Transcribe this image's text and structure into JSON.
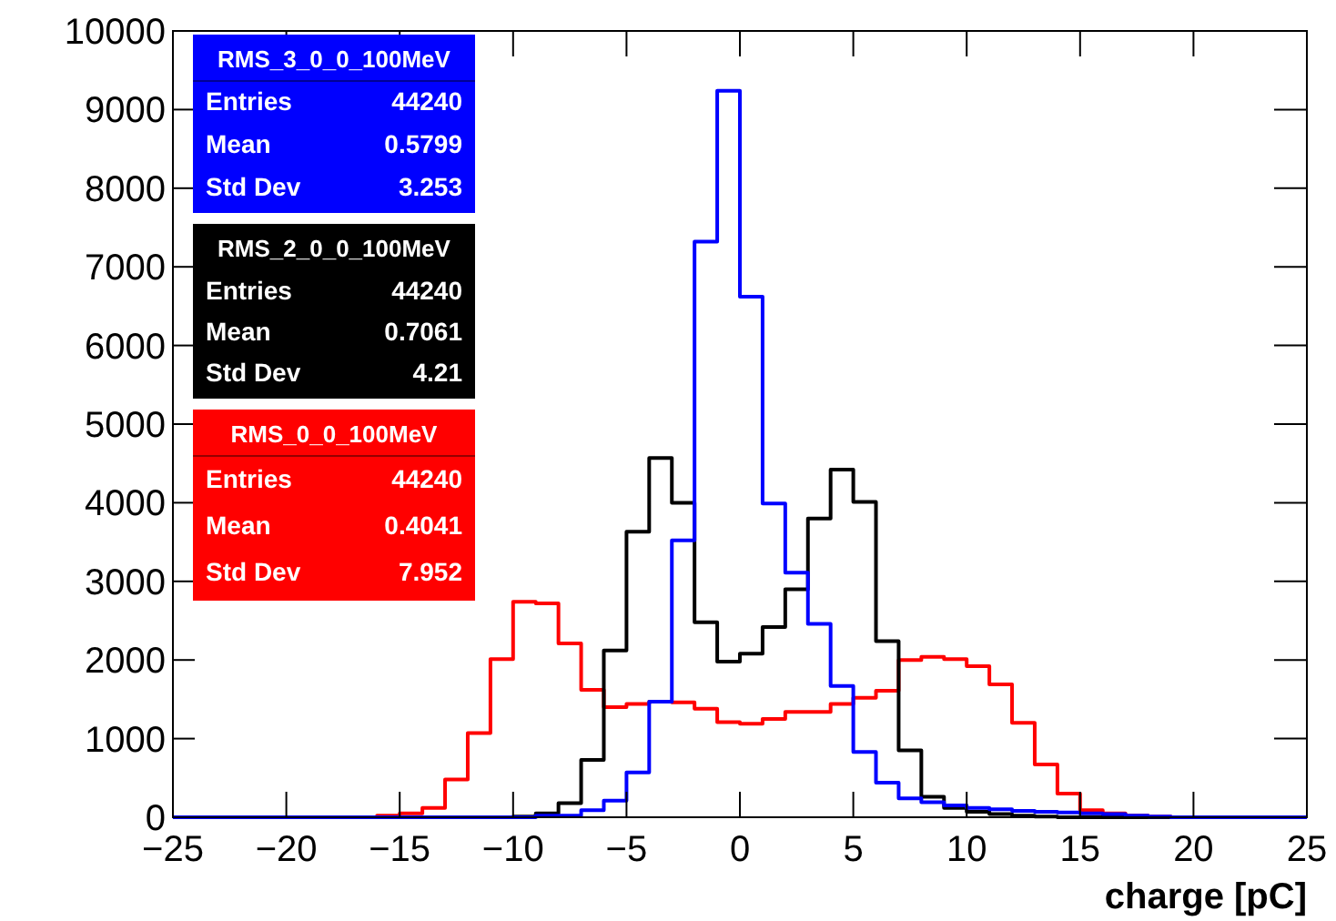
{
  "chart_data": {
    "type": "histogram",
    "xlabel": "charge [pC]",
    "bins": [
      -25,
      -24,
      -23,
      -22,
      -21,
      -20,
      -19,
      -18,
      -17,
      -16,
      -15,
      -14,
      -13,
      -12,
      -11,
      -10,
      -9,
      -8,
      -7,
      -6,
      -5,
      -4,
      -3,
      -2,
      -1,
      0,
      1,
      2,
      3,
      4,
      5,
      6,
      7,
      8,
      9,
      10,
      11,
      12,
      13,
      14,
      15,
      16,
      17,
      18,
      19,
      20,
      21,
      22,
      23,
      24,
      25
    ],
    "xlim": [
      -25,
      25
    ],
    "xticks": [
      -25,
      -20,
      -15,
      -10,
      -5,
      0,
      5,
      10,
      15,
      20,
      25
    ],
    "ylim": [
      0,
      10000
    ],
    "yticks": [
      0,
      1000,
      2000,
      3000,
      4000,
      5000,
      6000,
      7000,
      8000,
      9000,
      10000
    ],
    "grid": false,
    "legend": "top left",
    "series": [
      {
        "name": "RMS_3_0_0_100MeV",
        "color": "#0000ff",
        "values": [
          0,
          0,
          0,
          0,
          0,
          0,
          0,
          0,
          0,
          0,
          0,
          0,
          0,
          0,
          0,
          0,
          20,
          20,
          90,
          210,
          570,
          1470,
          3520,
          7320,
          9240,
          6620,
          3990,
          3110,
          2460,
          1670,
          830,
          440,
          240,
          190,
          150,
          120,
          100,
          80,
          70,
          60,
          50,
          40,
          20,
          10,
          0,
          0,
          0,
          0,
          0,
          0
        ]
      },
      {
        "name": "RMS_2_0_0_100MeV",
        "color": "#000000",
        "values": [
          0,
          0,
          0,
          0,
          0,
          0,
          0,
          0,
          0,
          0,
          0,
          0,
          0,
          0,
          0,
          10,
          50,
          180,
          730,
          2120,
          3630,
          4570,
          4000,
          2480,
          1980,
          2080,
          2420,
          2900,
          3800,
          4420,
          4010,
          2240,
          850,
          260,
          120,
          70,
          40,
          20,
          10,
          0,
          0,
          0,
          0,
          0,
          0,
          0,
          0,
          0,
          0,
          0
        ]
      },
      {
        "name": "RMS_0_0_100MeV",
        "color": "#ff0000",
        "values": [
          0,
          0,
          0,
          0,
          0,
          0,
          0,
          0,
          0,
          20,
          50,
          120,
          480,
          1070,
          2010,
          2740,
          2720,
          2210,
          1620,
          1400,
          1440,
          1470,
          1460,
          1380,
          1210,
          1190,
          1250,
          1340,
          1340,
          1440,
          1520,
          1610,
          2000,
          2040,
          2010,
          1920,
          1690,
          1200,
          670,
          300,
          90,
          50,
          20,
          10,
          0,
          0,
          0,
          0,
          0,
          0
        ]
      }
    ],
    "annotations": [
      "Entries 44240",
      "Mean 0.5799",
      "Std Dev 3.253",
      "Entries 44240",
      "Mean 0.7061",
      "Std Dev 4.21",
      "Entries 44240",
      "Mean 0.4041",
      "Std Dev 7.952"
    ]
  }
}
